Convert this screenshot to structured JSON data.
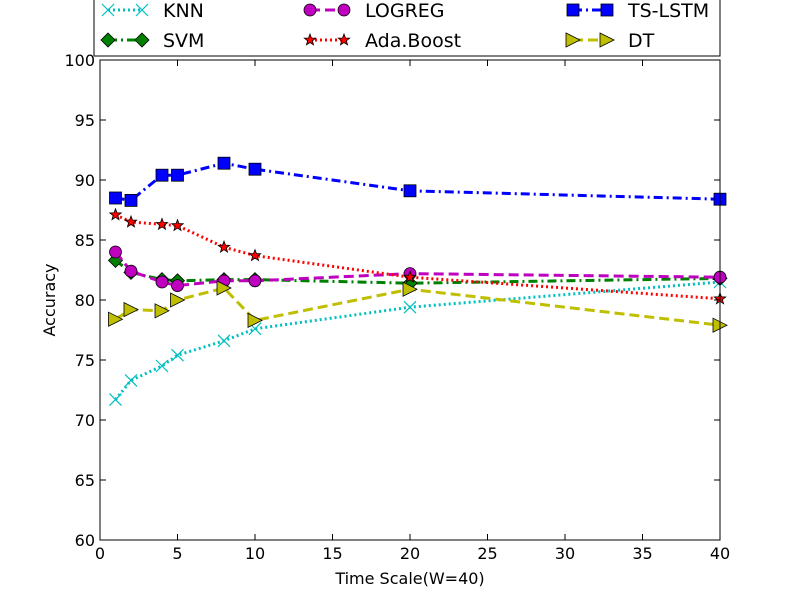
{
  "chart_data": {
    "type": "line",
    "title": "",
    "xlabel": "Time Scale(W=40)",
    "ylabel": "Accuracy",
    "xlim": [
      0,
      40
    ],
    "ylim": [
      60,
      100
    ],
    "xticks": [
      "0",
      "5",
      "10",
      "15",
      "20",
      "25",
      "30",
      "35",
      "40"
    ],
    "yticks": [
      "60",
      "65",
      "70",
      "75",
      "80",
      "85",
      "90",
      "95",
      "100"
    ],
    "grid": false,
    "legend_position": "top",
    "series": [
      {
        "name": "KNN",
        "color": "#00bfbf",
        "marker": "x",
        "line_style": "dotted",
        "points": [
          [
            1,
            71.7
          ],
          [
            2,
            73.3
          ],
          [
            4,
            74.5
          ],
          [
            5,
            75.4
          ],
          [
            8,
            76.6
          ],
          [
            10,
            77.6
          ],
          [
            20,
            79.4
          ],
          [
            40,
            81.5
          ]
        ]
      },
      {
        "name": "SVM",
        "color": "#008000",
        "marker": "diamond",
        "line_style": "dashdot",
        "points": [
          [
            1,
            83.3
          ],
          [
            2,
            82.3
          ],
          [
            4,
            81.7
          ],
          [
            5,
            81.6
          ],
          [
            8,
            81.7
          ],
          [
            10,
            81.7
          ],
          [
            20,
            81.4
          ],
          [
            40,
            81.8
          ]
        ]
      },
      {
        "name": "LOGREG",
        "color": "#bf00bf",
        "marker": "circle",
        "line_style": "dashed",
        "points": [
          [
            1,
            84.0
          ],
          [
            2,
            82.4
          ],
          [
            4,
            81.5
          ],
          [
            5,
            81.2
          ],
          [
            8,
            81.6
          ],
          [
            10,
            81.6
          ],
          [
            20,
            82.2
          ],
          [
            40,
            81.9
          ]
        ]
      },
      {
        "name": "Ada.Boost",
        "color": "#ff0000",
        "marker": "star",
        "line_style": "dotted",
        "points": [
          [
            1,
            87.1
          ],
          [
            2,
            86.5
          ],
          [
            4,
            86.3
          ],
          [
            5,
            86.2
          ],
          [
            8,
            84.4
          ],
          [
            10,
            83.7
          ],
          [
            20,
            81.9
          ],
          [
            40,
            80.1
          ]
        ]
      },
      {
        "name": "TS-LSTM",
        "color": "#0000ff",
        "marker": "square",
        "line_style": "dashdot",
        "points": [
          [
            1,
            88.5
          ],
          [
            2,
            88.3
          ],
          [
            4,
            90.4
          ],
          [
            5,
            90.4
          ],
          [
            8,
            91.4
          ],
          [
            10,
            90.9
          ],
          [
            20,
            89.1
          ],
          [
            40,
            88.4
          ]
        ]
      },
      {
        "name": "DT",
        "color": "#bfbf00",
        "marker": "triangle-right",
        "line_style": "dashed",
        "points": [
          [
            1,
            78.4
          ],
          [
            2,
            79.2
          ],
          [
            4,
            79.1
          ],
          [
            5,
            80.0
          ],
          [
            8,
            81.0
          ],
          [
            10,
            78.3
          ],
          [
            20,
            80.9
          ],
          [
            40,
            77.9
          ]
        ]
      }
    ]
  }
}
